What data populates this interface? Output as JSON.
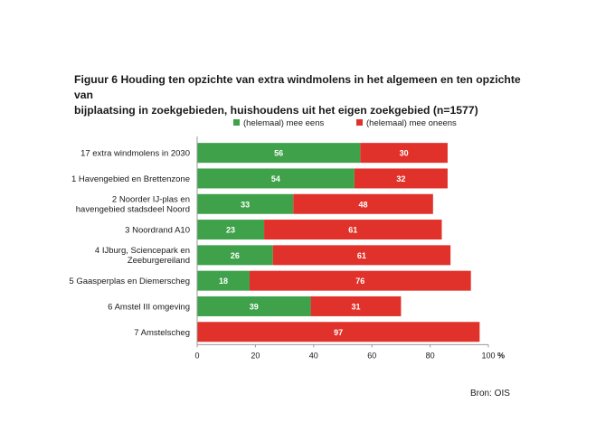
{
  "title": {
    "part1": "Figuur 6 Houding ten opzichte van extra wind",
    "part2": "molens in het algemeen",
    "part3": " en ten opzichte van",
    "part4": "bijplaatsing in zoekgebieden, huishoudens uit het eigen",
    "part5": " zoekgebied (n=1577)"
  },
  "source": "Bron: OIS",
  "colors": {
    "agree": "#3fa24a",
    "disagree": "#e0322a"
  },
  "chart_data": {
    "type": "bar",
    "orientation": "horizontal",
    "stacked": true,
    "title": "Figuur 6 Houding ten opzichte van extra windmolens in het algemeen en ten opzichte van bijplaatsing in zoekgebieden, huishoudens uit het eigen zoekgebied (n=1577)",
    "categories": [
      [
        "17 extra windmolens in 2030"
      ],
      [
        "1 Havengebied en Brettenzone"
      ],
      [
        "2 Noorder IJ-plas en",
        "havengebied stadsdeel Noord"
      ],
      [
        "3 Noordrand A10"
      ],
      [
        "4 IJburg, Sciencepark en",
        "Zeeburgereiland"
      ],
      [
        "5 Gaasperplas en Diemerscheg"
      ],
      [
        "6 Amstel III omgeving"
      ],
      [
        "7 Amstelscheg"
      ]
    ],
    "series": [
      {
        "name": "(helemaal) mee eens",
        "values": [
          56,
          54,
          33,
          23,
          26,
          18,
          39,
          null
        ]
      },
      {
        "name": "(helemaal) mee oneens",
        "values": [
          30,
          32,
          48,
          61,
          61,
          76,
          31,
          97
        ]
      }
    ],
    "xlim": [
      0,
      100
    ],
    "xticks": [
      0,
      20,
      40,
      60,
      80,
      100
    ],
    "xunit": "%",
    "legend_position": "top"
  }
}
